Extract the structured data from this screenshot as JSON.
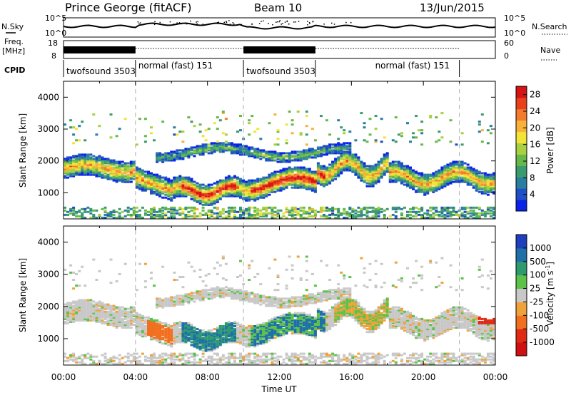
{
  "header": {
    "title": "Prince George (fitACF)",
    "beam": "Beam 10",
    "date": "13/Jun/2015"
  },
  "status_panel": {
    "nsky_label": "N.Sky",
    "nsearch_label": "N.Search",
    "nsky_ticks": [
      "10^5",
      "10^0"
    ],
    "nsky_right_ticks": [
      "10^5",
      "10^0"
    ],
    "freq_label_line1": "Freq.",
    "freq_label_line2": "[MHz]",
    "freq_ticks": [
      "18",
      "8"
    ],
    "nave_label": "Nave",
    "nave_ticks": [
      "60",
      "0"
    ],
    "cpid_label": "CPID",
    "programs": [
      {
        "name": "twofsound 3503",
        "start_hour": 0,
        "end_hour": 4
      },
      {
        "name": "normal (fast) 151",
        "start_hour": 4,
        "end_hour": 10
      },
      {
        "name": "twofsound 3503",
        "start_hour": 10,
        "end_hour": 14
      },
      {
        "name": "normal (fast) 151",
        "start_hour": 14,
        "end_hour": 22
      }
    ]
  },
  "chart_data": [
    {
      "type": "heatmap",
      "name": "power",
      "ylabel": "Slant Range [km]",
      "xlim": [
        0,
        24
      ],
      "ylim": [
        180,
        4500
      ],
      "yticks": [
        "1000",
        "2000",
        "3000",
        "4000"
      ],
      "ytick_values": [
        1000,
        2000,
        3000,
        4000
      ],
      "colorbar": {
        "label": "Power [dB]",
        "ticks": [
          "4",
          "8",
          "12",
          "16",
          "20",
          "24",
          "28"
        ],
        "tick_values": [
          4,
          8,
          12,
          16,
          20,
          24,
          28
        ],
        "range": [
          0,
          30
        ],
        "colors": [
          "#0b22e8",
          "#1f4fc4",
          "#2a7fa0",
          "#3c9b6e",
          "#67b84a",
          "#a8d040",
          "#f2e437",
          "#f8b23a",
          "#f47a2c",
          "#e8401d",
          "#d61414"
        ]
      }
    },
    {
      "type": "heatmap",
      "name": "velocity",
      "ylabel": "Slant Range [km]",
      "xlabel": "Time UT",
      "xlim": [
        0,
        24
      ],
      "ylim": [
        180,
        4500
      ],
      "xticks": [
        "00:00",
        "04:00",
        "08:00",
        "12:00",
        "16:00",
        "20:00",
        "00:00"
      ],
      "xtick_values": [
        0,
        4,
        8,
        12,
        16,
        20,
        24
      ],
      "yticks": [
        "1000",
        "2000",
        "3000",
        "4000"
      ],
      "ytick_values": [
        1000,
        2000,
        3000,
        4000
      ],
      "colorbar": {
        "label_text": "Velocity  [m s",
        "label_sup": "-1",
        "label_end": "]",
        "ticks": [
          "1000",
          "500",
          "100",
          "25",
          "-25",
          "-100",
          "-500",
          "-1000"
        ],
        "colors": [
          "#1f3fbf",
          "#1f6fa8",
          "#2e9a70",
          "#5cc24a",
          "#c8c8c8",
          "#f0a23a",
          "#f07020",
          "#e02a14",
          "#d01010"
        ]
      }
    }
  ],
  "dashed_markers_hours": [
    4,
    10,
    22
  ]
}
